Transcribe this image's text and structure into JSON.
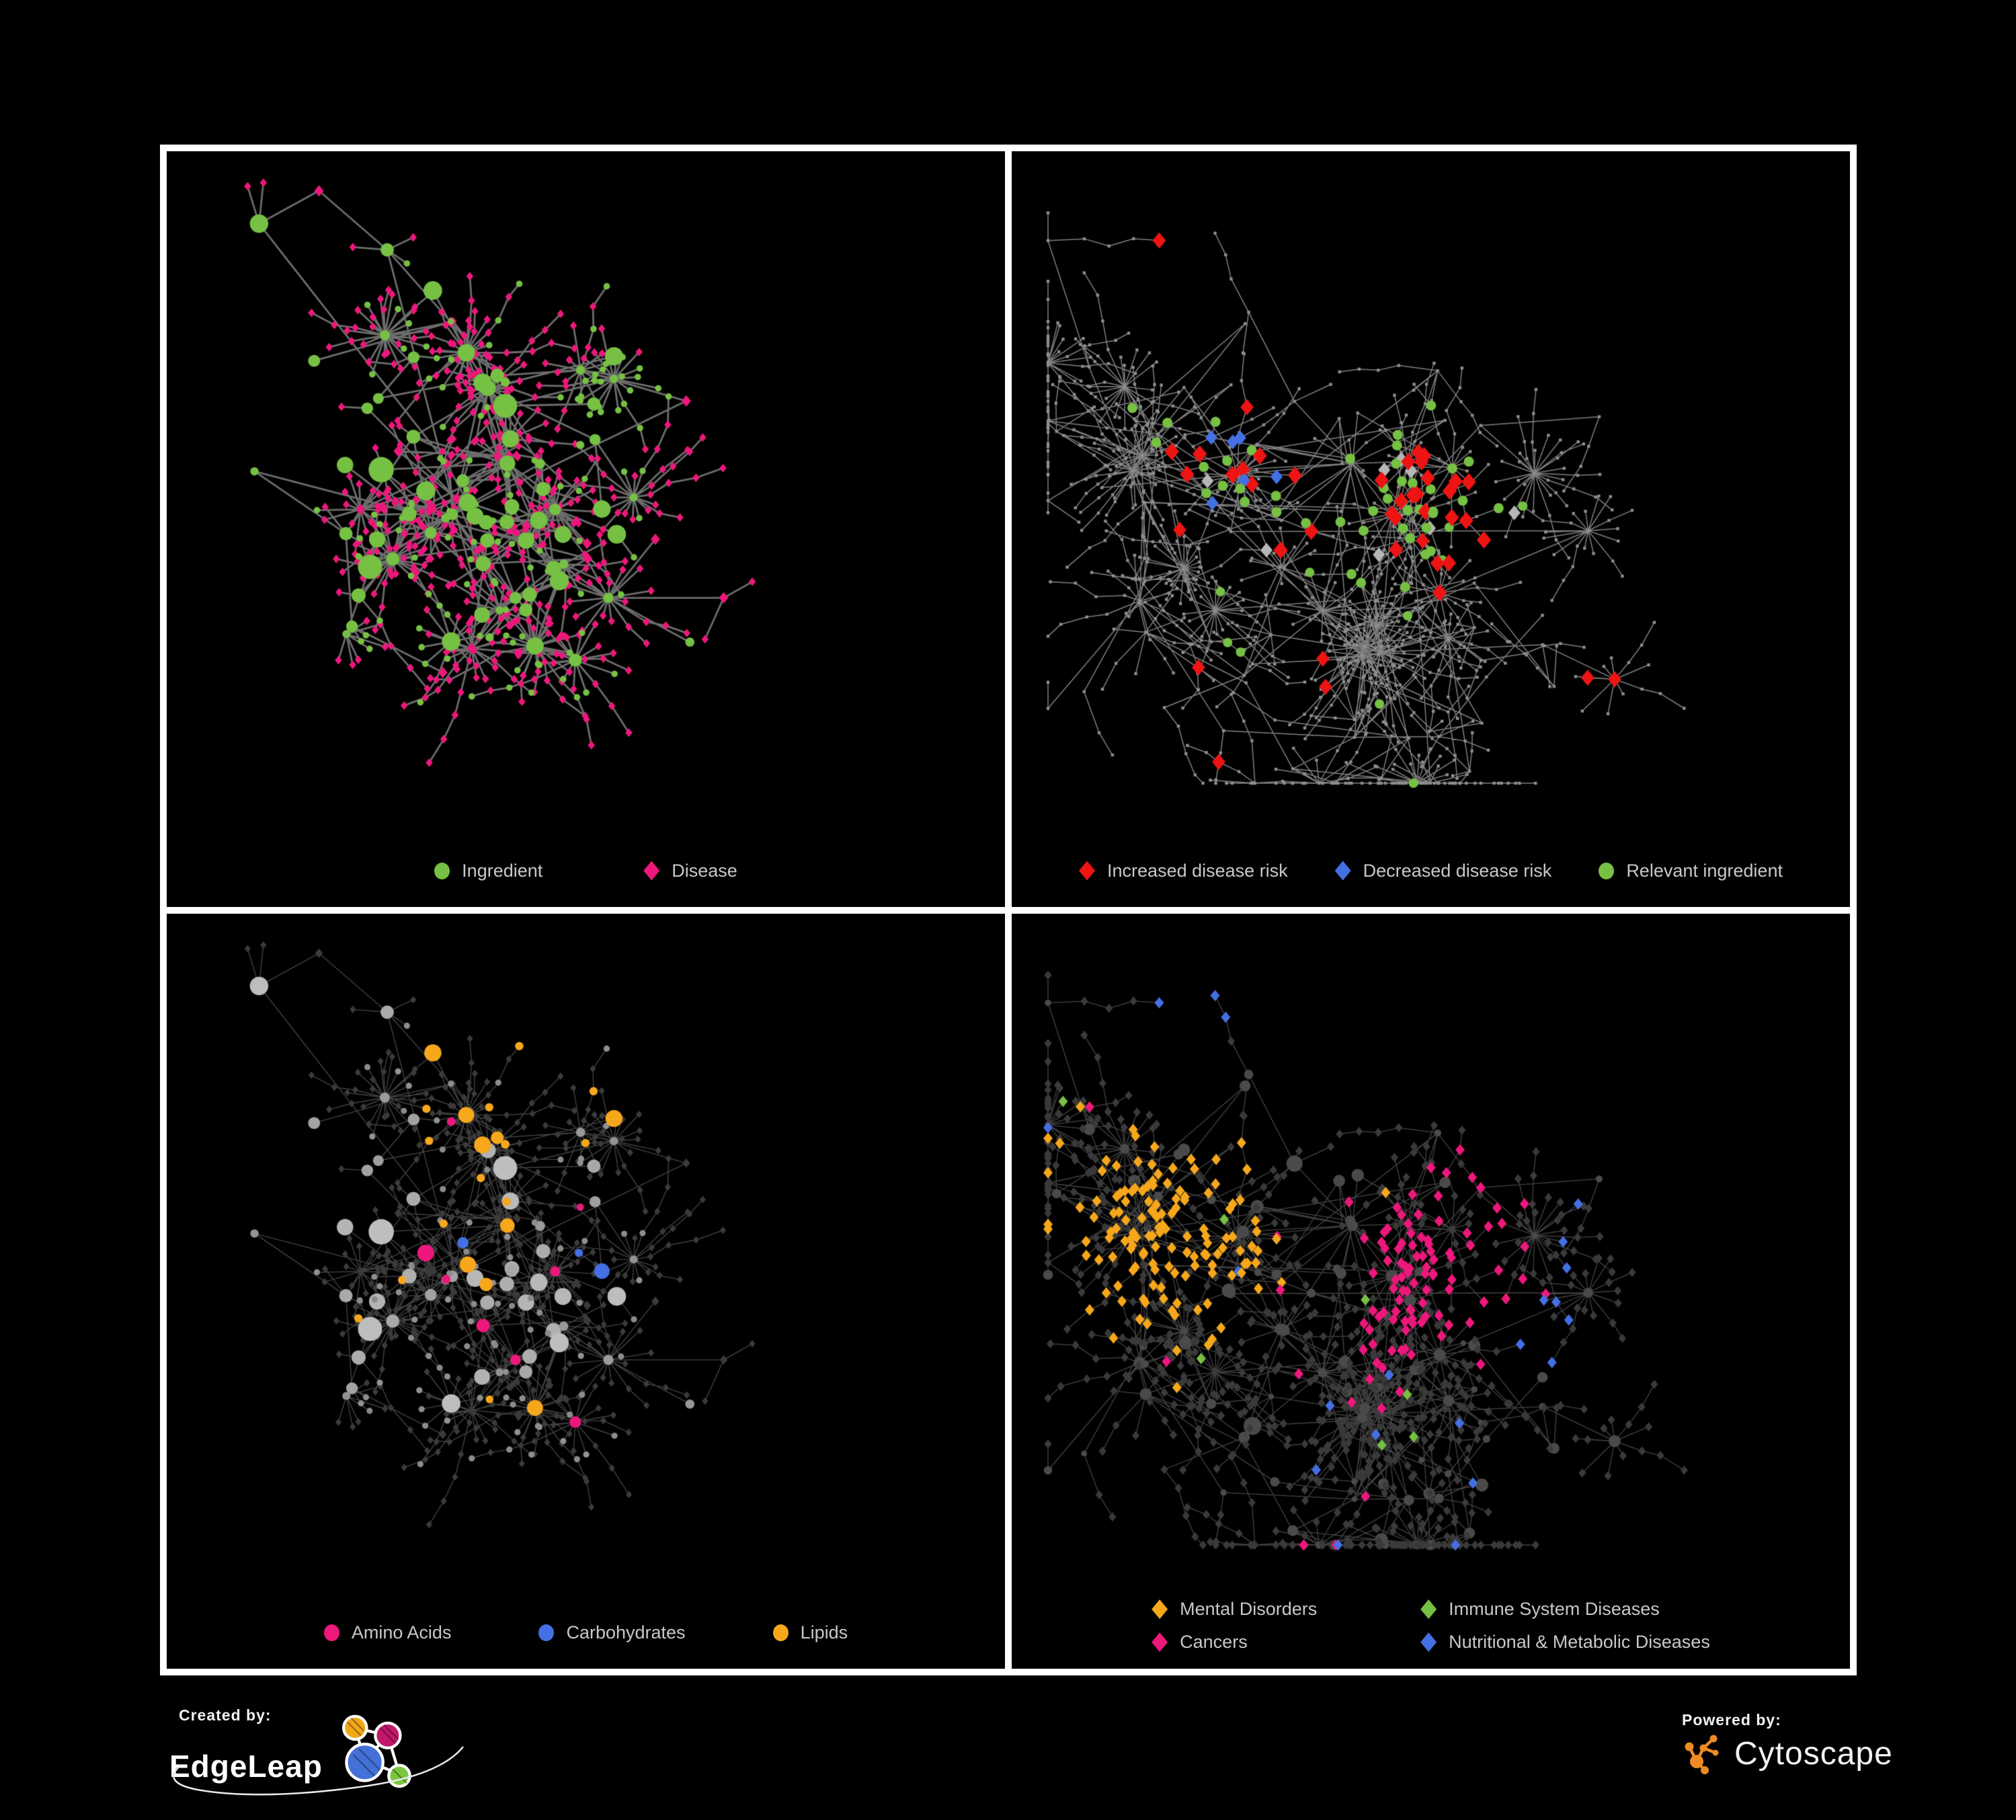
{
  "branding": {
    "created_by_label": "Created by:",
    "created_by_name": "EdgeLeap",
    "powered_by_label": "Powered by:",
    "powered_by_name": "Cytoscape"
  },
  "colors": {
    "background": "#000000",
    "frame": "#ffffff",
    "legend_text": "#c8c8c8",
    "green": "#76c043",
    "pink": "#ec187c",
    "red": "#ee1414",
    "blue": "#4470e4",
    "orange": "#f6a71b",
    "light_gray": "#b6b6b6",
    "dim_diamond": "#3a3a3a",
    "dim_circle": "#4a4a4a",
    "cytoscape_orange": "#ee8b22",
    "edgeleap_yellow": "#f0a718",
    "edgeleap_magenta": "#c2186b",
    "edgeleap_blue": "#4470d8",
    "edgeleap_green": "#7cc63e"
  },
  "panels": [
    {
      "id": "ingredient-disease",
      "network": "left",
      "legend_layout": "row",
      "legend_gap": 150,
      "legend": [
        {
          "label": "Ingredient",
          "shape": "circle",
          "color": "#76c043"
        },
        {
          "label": "Disease",
          "shape": "diamond",
          "color": "#ec187c"
        }
      ],
      "style": {
        "edge_color": "#6c6c6c",
        "edge_width": 2.8
      }
    },
    {
      "id": "disease-risk",
      "network": "right",
      "legend_layout": "row",
      "legend_gap": 70,
      "legend": [
        {
          "label": "Increased disease risk",
          "shape": "diamond",
          "color": "#ee1414"
        },
        {
          "label": "Decreased disease risk",
          "shape": "diamond",
          "color": "#4470e4"
        },
        {
          "label": "Relevant ingredient",
          "shape": "circle",
          "color": "#76c043"
        }
      ],
      "style": {
        "edge_color": "rgba(150,150,150,0.85)",
        "edge_width": 1.5,
        "base_node": "#8e8e8e"
      }
    },
    {
      "id": "nutrient-classes",
      "network": "left",
      "legend_layout": "row",
      "legend_gap": 130,
      "legend": [
        {
          "label": "Amino Acids",
          "shape": "circle",
          "color": "#ec187c"
        },
        {
          "label": "Carbohydrates",
          "shape": "circle",
          "color": "#4470e4"
        },
        {
          "label": "Lipids",
          "shape": "circle",
          "color": "#f6a71b"
        }
      ],
      "style": {
        "edge_color": "rgba(200,200,200,0.33)",
        "edge_width": 1.4,
        "dim_diamond": "#3b3b3b"
      }
    },
    {
      "id": "disease-classes",
      "network": "right",
      "legend_layout": "grid",
      "legend": [
        {
          "label": "Mental Disorders",
          "shape": "diamond",
          "color": "#f6a71b"
        },
        {
          "label": "Immune System Diseases",
          "shape": "diamond",
          "color": "#76c043"
        },
        {
          "label": "Cancers",
          "shape": "diamond",
          "color": "#ec187c"
        },
        {
          "label": "Nutritional & Metabolic Diseases",
          "shape": "diamond",
          "color": "#4470e4"
        }
      ],
      "style": {
        "edge_color": "rgba(170,170,170,0.4)",
        "edge_width": 1.3,
        "dim_diamond": "#3a3a3a",
        "dim_circle": "#4a4a4a"
      }
    }
  ]
}
